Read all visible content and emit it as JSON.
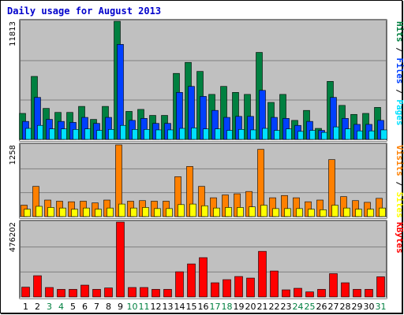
{
  "chart_data": {
    "type": "bar",
    "title": "Daily usage for August 2013",
    "categories": [
      "1",
      "2",
      "3",
      "4",
      "5",
      "6",
      "7",
      "8",
      "9",
      "10",
      "11",
      "12",
      "13",
      "14",
      "15",
      "16",
      "17",
      "18",
      "19",
      "20",
      "21",
      "22",
      "23",
      "24",
      "25",
      "26",
      "27",
      "28",
      "29",
      "30",
      "31"
    ],
    "weekend_days": [
      "3",
      "4",
      "10",
      "11",
      "17",
      "18",
      "24",
      "25",
      "31"
    ],
    "colors": {
      "hits": "#008040",
      "files": "#0040ff",
      "pages": "#00e0ff",
      "visits": "#ff8000",
      "sites": "#ffff00",
      "kbytes": "#ff0000",
      "weekday_label": "#000000",
      "weekend_label": "#008040",
      "plot_bg": "#c0c0c0",
      "frame_bg": "#ffffff",
      "title": "#0000cc"
    },
    "panels": [
      {
        "id": "hits",
        "max_label": "11813",
        "ymax": 11813,
        "side_label": [
          {
            "text": "Pages",
            "color": "#00e0ff"
          },
          {
            "text": " / ",
            "color": "#000000"
          },
          {
            "text": "Files",
            "color": "#0040ff"
          },
          {
            "text": " / ",
            "color": "#000000"
          },
          {
            "text": "Hits",
            "color": "#008040"
          }
        ],
        "series": [
          {
            "name": "Hits",
            "color_key": "hits",
            "values": [
              2600,
              6300,
              3100,
              2700,
              2700,
              3300,
              2000,
              3300,
              11813,
              2800,
              3000,
              2400,
              2400,
              6600,
              7700,
              6800,
              4500,
              5300,
              4700,
              4500,
              8700,
              3700,
              4500,
              1900,
              2900,
              1100,
              5800,
              3400,
              2500,
              2600,
              3200
            ]
          },
          {
            "name": "Files",
            "color_key": "files",
            "values": [
              1800,
              4200,
              2000,
              1800,
              1700,
              2200,
              1600,
              2200,
              9500,
              1900,
              2100,
              1600,
              1600,
              4700,
              5300,
              4300,
              2900,
              2200,
              2300,
              2300,
              4900,
              2200,
              2100,
              1400,
              1800,
              900,
              4200,
              2100,
              1500,
              1500,
              1900
            ]
          },
          {
            "name": "Pages",
            "color_key": "pages",
            "values": [
              1100,
              1400,
              1050,
              1050,
              1000,
              1050,
              900,
              1000,
              1400,
              1000,
              1000,
              950,
              950,
              1100,
              1150,
              1050,
              1050,
              900,
              1000,
              950,
              1100,
              900,
              1050,
              800,
              900,
              700,
              1250,
              1050,
              850,
              850,
              950
            ]
          }
        ]
      },
      {
        "id": "visits",
        "max_label": "1258",
        "ymax": 1258,
        "side_label": [
          {
            "text": "Sites",
            "color": "#ffff00"
          },
          {
            "text": " / ",
            "color": "#000000"
          },
          {
            "text": "Visits",
            "color": "#ff8000"
          }
        ],
        "series": [
          {
            "name": "Visits",
            "color_key": "visits",
            "values": [
              200,
              530,
              290,
              270,
              260,
              270,
              240,
              290,
              1258,
              270,
              280,
              270,
              270,
              700,
              880,
              530,
              330,
              380,
              400,
              440,
              1180,
              330,
              370,
              330,
              260,
              290,
              1000,
              350,
              280,
              250,
              320
            ]
          },
          {
            "name": "Sites",
            "color_key": "sites",
            "values": [
              130,
              180,
              160,
              150,
              130,
              150,
              130,
              150,
              220,
              150,
              160,
              140,
              140,
              210,
              220,
              190,
              150,
              160,
              160,
              170,
              200,
              140,
              140,
              140,
              130,
              120,
              200,
              150,
              130,
              130,
              150
            ]
          }
        ]
      },
      {
        "id": "kbytes",
        "max_label": "476202",
        "ymax": 476202,
        "side_label": [
          {
            "text": "KBytes",
            "color": "#ff0000"
          }
        ],
        "series": [
          {
            "name": "KBytes",
            "color_key": "kbytes",
            "values": [
              62000,
              135000,
              60000,
              48000,
              48000,
              75000,
              48000,
              57000,
              476202,
              60000,
              60000,
              48000,
              48000,
              160000,
              210000,
              250000,
              90000,
              110000,
              130000,
              120000,
              290000,
              165000,
              45000,
              55000,
              32000,
              48000,
              148000,
              90000,
              48000,
              48000,
              128000
            ]
          }
        ]
      }
    ]
  }
}
